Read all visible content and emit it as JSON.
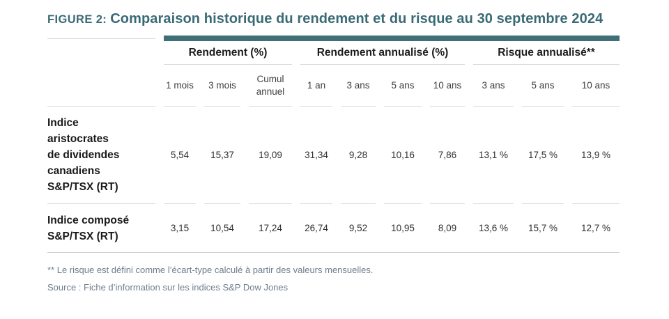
{
  "title": {
    "figure_label": "FIGURE 2:",
    "text": "Comparaison historique du rendement et du risque au 30 septembre 2024"
  },
  "table": {
    "column_groups": [
      {
        "label": "Rendement (%)",
        "span": 3
      },
      {
        "label": "Rendement annualisé (%)",
        "span": 4
      },
      {
        "label": "Risque annualisé**",
        "span": 3
      }
    ],
    "columns": [
      "1 mois",
      "3 mois",
      "Cumul annuel",
      "1 an",
      "3 ans",
      "5 ans",
      "10 ans",
      "3 ans",
      "5 ans",
      "10 ans"
    ],
    "rows": [
      {
        "label": "Indice\naristocrates\nde dividendes\ncanadiens\nS&P/TSX (RT)",
        "values": [
          "5,54",
          "15,37",
          "19,09",
          "31,34",
          "9,28",
          "10,16",
          "7,86",
          "13,1 %",
          "17,5 %",
          "13,9 %"
        ]
      },
      {
        "label": "Indice composé\nS&P/TSX (RT)",
        "values": [
          "3,15",
          "10,54",
          "17,24",
          "26,74",
          "9,52",
          "10,95",
          "8,09",
          "13,6 %",
          "15,7 %",
          "12,7 %"
        ]
      }
    ]
  },
  "footnotes": {
    "risk_note": "** Le risque est défini comme l’écart-type calculé à partir des valeurs mensuelles.",
    "source": "Source : Fiche d’information sur les indices S&P Dow Jones"
  },
  "colors": {
    "accent_teal": "#3f6f77",
    "title_teal": "#3a6a76",
    "footnote_gray": "#6f7d8d"
  }
}
